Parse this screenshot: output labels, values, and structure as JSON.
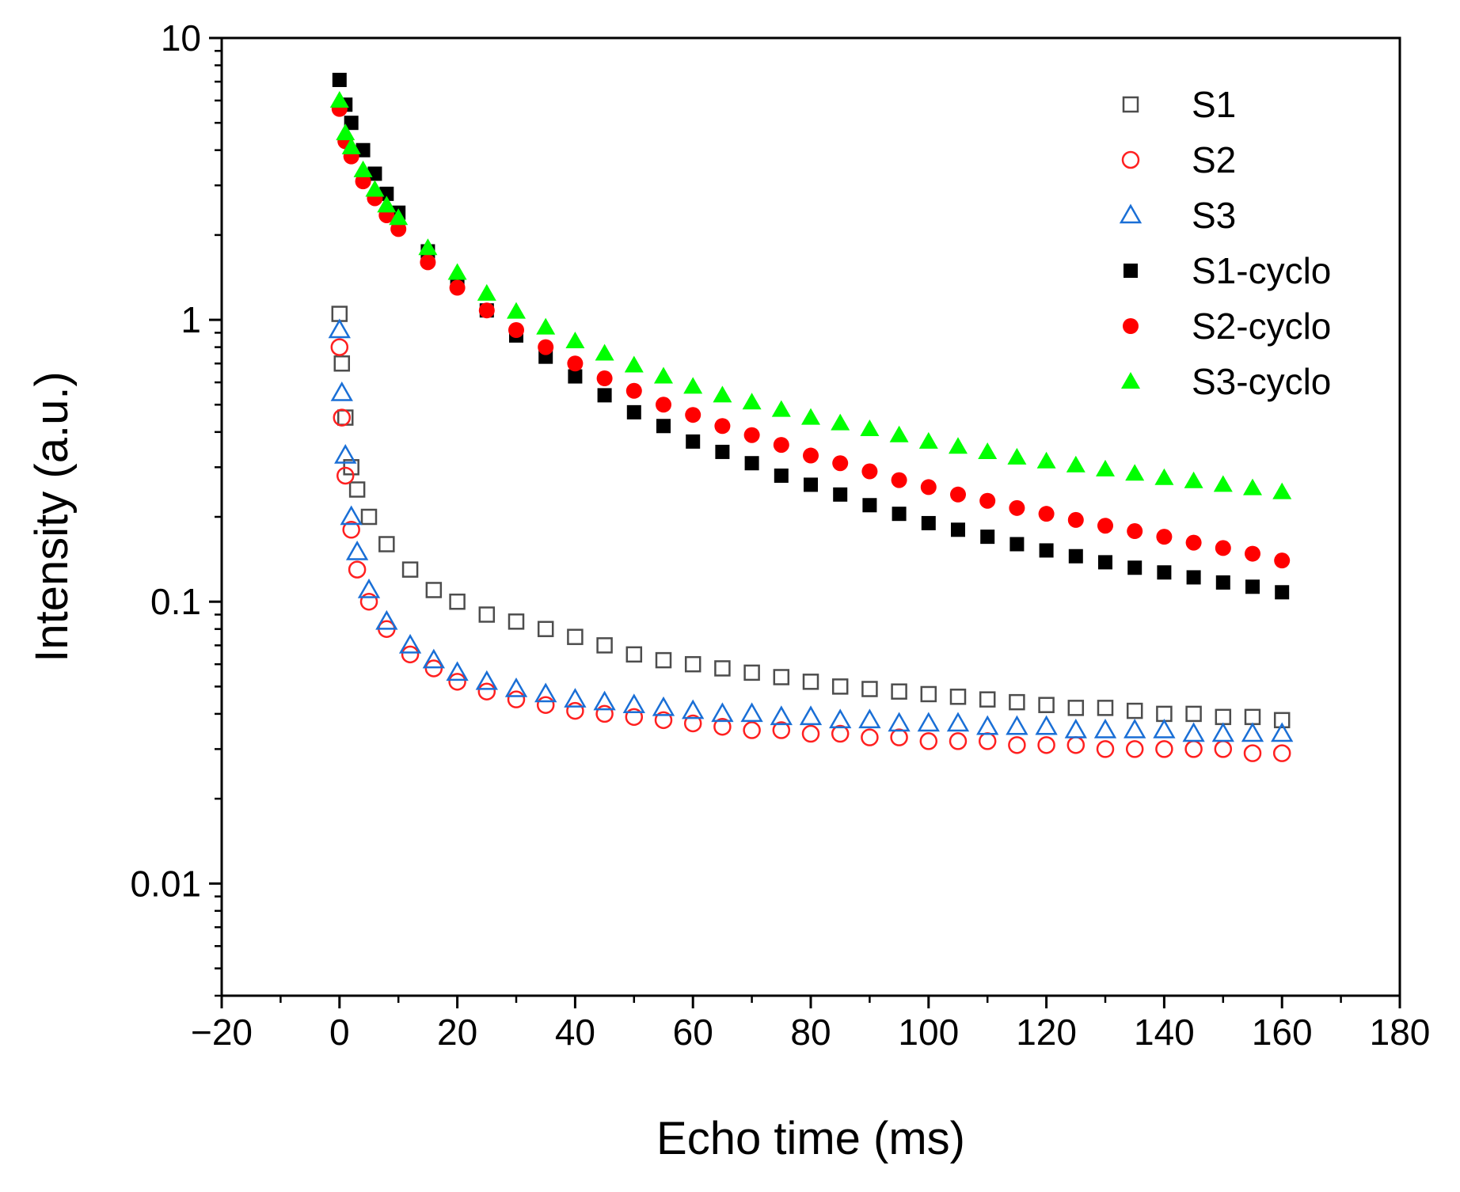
{
  "chart_data": {
    "type": "scatter",
    "title": "",
    "xlabel": "Echo time (ms)",
    "ylabel": "Intensity (a.u.)",
    "xlim": [
      -20,
      180
    ],
    "ylim": [
      0.004,
      10
    ],
    "yscale": "log",
    "x_ticks": [
      -20,
      0,
      20,
      40,
      60,
      80,
      100,
      120,
      140,
      160,
      180
    ],
    "x_tick_labels": [
      "−20",
      "0",
      "20",
      "40",
      "60",
      "80",
      "100",
      "120",
      "140",
      "160",
      "180"
    ],
    "y_ticks": [
      0.01,
      0.1,
      1,
      10
    ],
    "y_tick_labels": [
      "0.01",
      "0.1",
      "1",
      "10"
    ],
    "legend_position": "top-right",
    "grid": false,
    "colors": {
      "S1": "#4d4d4d",
      "S2": "#ff2020",
      "S3": "#1a6fd6",
      "S1-cyclo": "#000000",
      "S2-cyclo": "#ff0000",
      "S3-cyclo": "#00ff00"
    },
    "series": [
      {
        "name": "S1",
        "marker": "square-open",
        "x": [
          0,
          0.4,
          1,
          2,
          3,
          5,
          8,
          12,
          16,
          20,
          25,
          30,
          35,
          40,
          45,
          50,
          55,
          60,
          65,
          70,
          75,
          80,
          85,
          90,
          95,
          100,
          105,
          110,
          115,
          120,
          125,
          130,
          135,
          140,
          145,
          150,
          155,
          160
        ],
        "values": [
          1.05,
          0.7,
          0.45,
          0.3,
          0.25,
          0.2,
          0.16,
          0.13,
          0.11,
          0.1,
          0.09,
          0.085,
          0.08,
          0.075,
          0.07,
          0.065,
          0.062,
          0.06,
          0.058,
          0.056,
          0.054,
          0.052,
          0.05,
          0.049,
          0.048,
          0.047,
          0.046,
          0.045,
          0.044,
          0.043,
          0.042,
          0.042,
          0.041,
          0.04,
          0.04,
          0.039,
          0.039,
          0.038
        ]
      },
      {
        "name": "S2",
        "marker": "circle-open",
        "x": [
          0,
          0.4,
          1,
          2,
          3,
          5,
          8,
          12,
          16,
          20,
          25,
          30,
          35,
          40,
          45,
          50,
          55,
          60,
          65,
          70,
          75,
          80,
          85,
          90,
          95,
          100,
          105,
          110,
          115,
          120,
          125,
          130,
          135,
          140,
          145,
          150,
          155,
          160
        ],
        "values": [
          0.8,
          0.45,
          0.28,
          0.18,
          0.13,
          0.1,
          0.08,
          0.065,
          0.058,
          0.052,
          0.048,
          0.045,
          0.043,
          0.041,
          0.04,
          0.039,
          0.038,
          0.037,
          0.036,
          0.035,
          0.035,
          0.034,
          0.034,
          0.033,
          0.033,
          0.032,
          0.032,
          0.032,
          0.031,
          0.031,
          0.031,
          0.03,
          0.03,
          0.03,
          0.03,
          0.03,
          0.029,
          0.029
        ]
      },
      {
        "name": "S3",
        "marker": "triangle-open",
        "x": [
          0,
          0.4,
          1,
          2,
          3,
          5,
          8,
          12,
          16,
          20,
          25,
          30,
          35,
          40,
          45,
          50,
          55,
          60,
          65,
          70,
          75,
          80,
          85,
          90,
          95,
          100,
          105,
          110,
          115,
          120,
          125,
          130,
          135,
          140,
          145,
          150,
          155,
          160
        ],
        "values": [
          0.92,
          0.55,
          0.33,
          0.2,
          0.15,
          0.11,
          0.085,
          0.07,
          0.062,
          0.056,
          0.052,
          0.049,
          0.047,
          0.045,
          0.044,
          0.043,
          0.042,
          0.041,
          0.04,
          0.04,
          0.039,
          0.039,
          0.038,
          0.038,
          0.037,
          0.037,
          0.037,
          0.036,
          0.036,
          0.036,
          0.035,
          0.035,
          0.035,
          0.035,
          0.034,
          0.034,
          0.034,
          0.034
        ]
      },
      {
        "name": "S1-cyclo",
        "marker": "square-filled",
        "x": [
          0,
          1,
          2,
          4,
          6,
          8,
          10,
          15,
          20,
          25,
          30,
          35,
          40,
          45,
          50,
          55,
          60,
          65,
          70,
          75,
          80,
          85,
          90,
          95,
          100,
          105,
          110,
          115,
          120,
          125,
          130,
          135,
          140,
          145,
          150,
          155,
          160
        ],
        "values": [
          7.1,
          5.8,
          5.0,
          4.0,
          3.3,
          2.8,
          2.4,
          1.75,
          1.35,
          1.08,
          0.88,
          0.74,
          0.63,
          0.54,
          0.47,
          0.42,
          0.37,
          0.34,
          0.31,
          0.28,
          0.26,
          0.24,
          0.22,
          0.205,
          0.19,
          0.18,
          0.17,
          0.16,
          0.152,
          0.145,
          0.138,
          0.132,
          0.127,
          0.122,
          0.117,
          0.113,
          0.108
        ]
      },
      {
        "name": "S2-cyclo",
        "marker": "circle-filled",
        "x": [
          0,
          1,
          2,
          4,
          6,
          8,
          10,
          15,
          20,
          25,
          30,
          35,
          40,
          45,
          50,
          55,
          60,
          65,
          70,
          75,
          80,
          85,
          90,
          95,
          100,
          105,
          110,
          115,
          120,
          125,
          130,
          135,
          140,
          145,
          150,
          155,
          160
        ],
        "values": [
          5.6,
          4.3,
          3.8,
          3.1,
          2.7,
          2.35,
          2.1,
          1.6,
          1.3,
          1.08,
          0.92,
          0.8,
          0.7,
          0.62,
          0.56,
          0.5,
          0.46,
          0.42,
          0.39,
          0.36,
          0.33,
          0.31,
          0.29,
          0.27,
          0.255,
          0.24,
          0.228,
          0.215,
          0.205,
          0.195,
          0.186,
          0.178,
          0.17,
          0.162,
          0.155,
          0.148,
          0.14
        ]
      },
      {
        "name": "S3-cyclo",
        "marker": "triangle-filled",
        "x": [
          0,
          1,
          2,
          4,
          6,
          8,
          10,
          15,
          20,
          25,
          30,
          35,
          40,
          45,
          50,
          55,
          60,
          65,
          70,
          75,
          80,
          85,
          90,
          95,
          100,
          105,
          110,
          115,
          120,
          125,
          130,
          135,
          140,
          145,
          150,
          155,
          160
        ],
        "values": [
          6.0,
          4.6,
          4.1,
          3.4,
          2.9,
          2.55,
          2.3,
          1.8,
          1.47,
          1.24,
          1.07,
          0.94,
          0.84,
          0.76,
          0.69,
          0.63,
          0.58,
          0.54,
          0.51,
          0.48,
          0.45,
          0.43,
          0.41,
          0.39,
          0.37,
          0.355,
          0.34,
          0.325,
          0.315,
          0.305,
          0.295,
          0.285,
          0.275,
          0.268,
          0.26,
          0.253,
          0.245
        ]
      }
    ]
  }
}
